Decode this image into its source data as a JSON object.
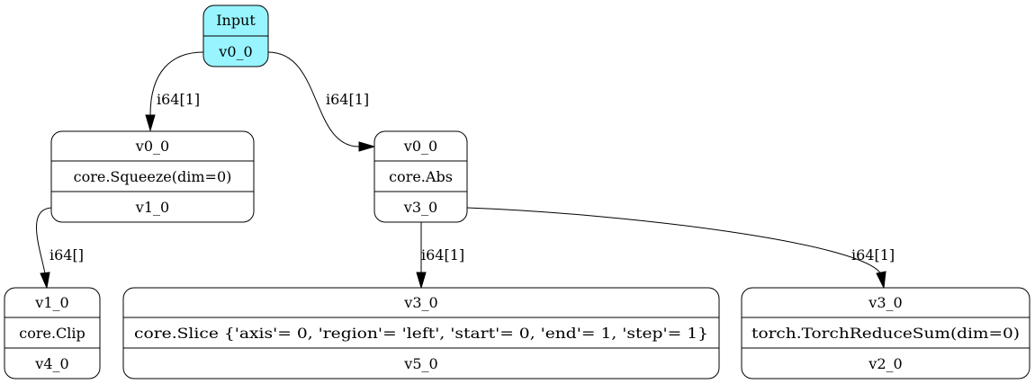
{
  "nodes": {
    "input": {
      "rows": [
        "Input",
        "v0_0"
      ],
      "fill": "#98f5ff"
    },
    "squeeze": {
      "rows": [
        "v0_0",
        "core.Squeeze(dim=0)",
        "v1_0"
      ]
    },
    "abs": {
      "rows": [
        "v0_0",
        "core.Abs",
        "v3_0"
      ]
    },
    "clip": {
      "rows": [
        "v1_0",
        "core.Clip",
        "v4_0"
      ]
    },
    "slice": {
      "rows": [
        "v3_0",
        "core.Slice {'axis'= 0, 'region'= 'left', 'start'= 0, 'end'= 1, 'step'= 1}",
        "v5_0"
      ]
    },
    "reduce": {
      "rows": [
        "v3_0",
        "torch.TorchReduceSum(dim=0)",
        "v2_0"
      ]
    }
  },
  "edges": {
    "input_to_squeeze": {
      "label": "i64[1]"
    },
    "input_to_abs": {
      "label": "i64[1]"
    },
    "squeeze_to_clip": {
      "label": "i64[]"
    },
    "abs_to_slice": {
      "label": "i64[1]"
    },
    "abs_to_reduce": {
      "label": "i64[1]"
    }
  }
}
